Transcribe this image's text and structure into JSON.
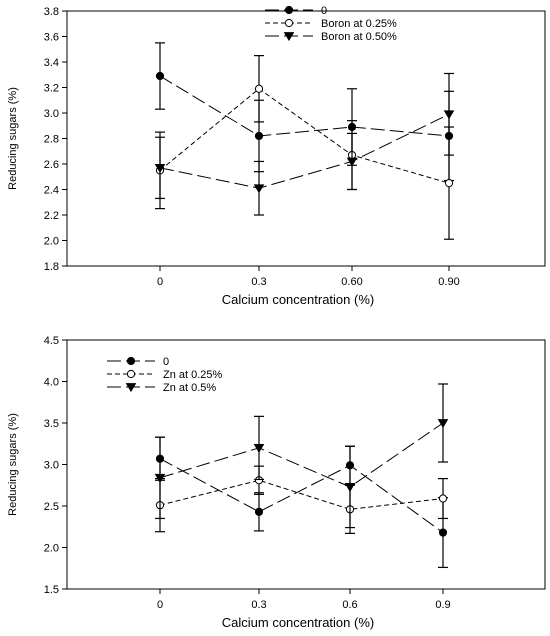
{
  "chart_data": [
    {
      "type": "line",
      "x": [
        "0",
        "0.3",
        "0.60",
        "0.90"
      ],
      "xlabel": "Calcium concentration (%)",
      "ylabel": "Reducing sugars (%)",
      "ylim": [
        1.8,
        3.8
      ],
      "yticks": [
        "1.8",
        "2.0",
        "2.2",
        "2.4",
        "2.6",
        "2.8",
        "3.0",
        "3.2",
        "3.4",
        "3.6",
        "3.8"
      ],
      "grid": false,
      "legend_position": "top-right",
      "series": [
        {
          "name": "0",
          "marker": "filled-circle",
          "dash": "long",
          "values": [
            3.29,
            2.82,
            2.89,
            2.82
          ],
          "err": [
            0.26,
            0.28,
            0.3,
            0.35
          ]
        },
        {
          "name": "Boron at 0.25%",
          "marker": "open-circle",
          "dash": "short",
          "values": [
            2.55,
            3.19,
            2.67,
            2.45
          ],
          "err": [
            0.3,
            0.26,
            0.27,
            0.44
          ]
        },
        {
          "name": "Boron at 0.50%",
          "marker": "filled-triangle-down",
          "dash": "long",
          "values": [
            2.57,
            2.41,
            2.62,
            2.99
          ],
          "err": [
            0.24,
            0.21,
            0.22,
            0.32
          ]
        }
      ]
    },
    {
      "type": "line",
      "x": [
        "0",
        "0.3",
        "0.6",
        "0.9"
      ],
      "xlabel": "Calcium concentration (%)",
      "ylabel": "Reducing sugars (%)",
      "ylim": [
        1.5,
        4.5
      ],
      "yticks": [
        "1.5",
        "2.0",
        "2.5",
        "3.0",
        "3.5",
        "4.0",
        "4.5"
      ],
      "grid": false,
      "legend_position": "top-left",
      "series": [
        {
          "name": "0",
          "marker": "filled-circle",
          "dash": "long",
          "values": [
            3.07,
            2.43,
            2.99,
            2.18
          ],
          "err": [
            0.26,
            0.23,
            0.23,
            0.42
          ]
        },
        {
          "name": "Zn at 0.25%",
          "marker": "open-circle",
          "dash": "short",
          "values": [
            2.51,
            2.81,
            2.46,
            2.59
          ],
          "err": [
            0.32,
            0.17,
            0.29,
            0.24
          ]
        },
        {
          "name": "Zn at 0.5%",
          "marker": "filled-triangle-down",
          "dash": "long",
          "values": [
            2.84,
            3.2,
            2.73,
            3.5
          ],
          "err": [
            0.49,
            0.38,
            0.49,
            0.47
          ]
        }
      ]
    }
  ]
}
